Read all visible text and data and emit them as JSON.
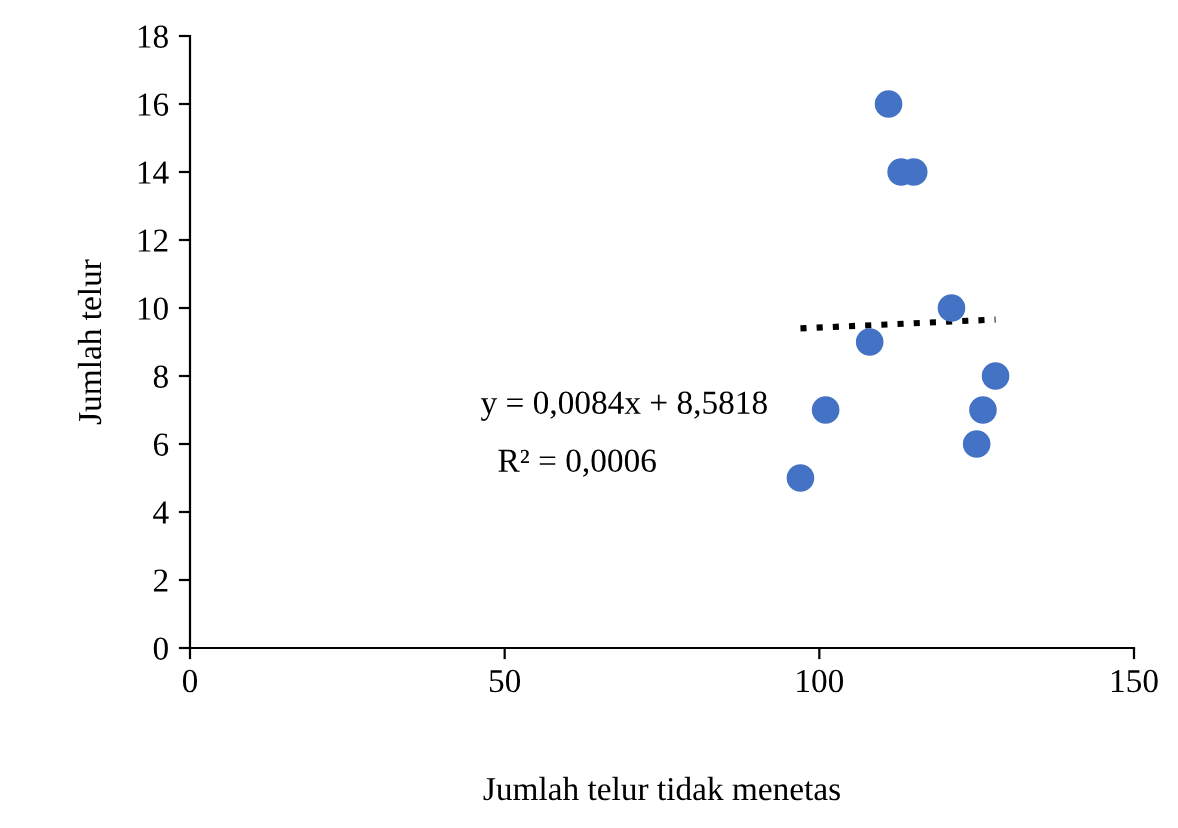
{
  "chart_data": {
    "type": "scatter",
    "xlabel": "Jumlah telur tidak menetas",
    "ylabel": "Jumlah telur",
    "xlim": [
      0,
      150
    ],
    "xticks": [
      0,
      50,
      100,
      150
    ],
    "ylim": [
      0,
      18
    ],
    "yticks": [
      0,
      2,
      4,
      6,
      8,
      10,
      12,
      14,
      16,
      18
    ],
    "grid": false,
    "legend": false,
    "marker": "circle",
    "series": [
      {
        "color": "#4472c4",
        "x": [
          97,
          101,
          108,
          111,
          113,
          115,
          121,
          125,
          126,
          128
        ],
        "values": [
          5,
          7,
          9,
          16,
          14,
          14,
          10,
          6,
          7,
          8
        ]
      },
      {
        "type": "line",
        "color": "#000000",
        "line_style": "dotted",
        "marker": "none",
        "x": [
          97,
          128
        ],
        "values": [
          9.4,
          9.66
        ]
      }
    ],
    "annotations": [
      "y = 0,0084x + 8,5818",
      "R² = 0,0006"
    ]
  }
}
